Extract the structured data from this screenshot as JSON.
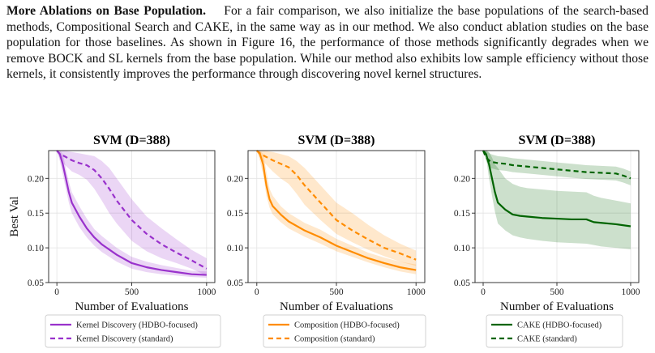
{
  "paragraph": {
    "heading": "More Ablations on Base Population.",
    "body": "For a fair comparison, we also initialize the base populations of the search-based methods, Compositional Search and CAKE, in the same way as in our method. We also conduct ablation studies on the base population for those baselines. As shown in Figure 16, the performance of those methods significantly degrades when we remove BOCK and SL kernels from the base population. While our method also exhibits low sample efficiency without those kernels, it consistently improves the performance through discovering novel kernel structures."
  },
  "chart_data": [
    {
      "type": "line",
      "title": "SVM (D=388)",
      "xlabel": "Number of Evaluations",
      "ylabel": "Best Val",
      "xlim": [
        0,
        1000
      ],
      "ylim": [
        0.05,
        0.24
      ],
      "xticks": [
        0,
        500,
        1000
      ],
      "yticks": [
        0.05,
        0.1,
        0.15,
        0.2
      ],
      "grid": true,
      "legend_position": "below",
      "series": [
        {
          "name": "Kernel Discovery (HDBO-focused)",
          "style": "solid",
          "color": "#9932CC",
          "x": [
            0,
            20,
            40,
            60,
            80,
            100,
            150,
            200,
            250,
            300,
            400,
            500,
            600,
            700,
            800,
            900,
            1000
          ],
          "y": [
            0.24,
            0.235,
            0.22,
            0.2,
            0.18,
            0.165,
            0.145,
            0.128,
            0.115,
            0.105,
            0.09,
            0.078,
            0.072,
            0.068,
            0.065,
            0.062,
            0.061
          ],
          "band": [
            [
              0.24,
              0.24
            ],
            [
              0.225,
              0.24
            ],
            [
              0.205,
              0.235
            ],
            [
              0.185,
              0.215
            ],
            [
              0.165,
              0.195
            ],
            [
              0.15,
              0.18
            ],
            [
              0.13,
              0.16
            ],
            [
              0.115,
              0.142
            ],
            [
              0.103,
              0.127
            ],
            [
              0.094,
              0.117
            ],
            [
              0.08,
              0.1
            ],
            [
              0.07,
              0.087
            ],
            [
              0.065,
              0.08
            ],
            [
              0.062,
              0.075
            ],
            [
              0.06,
              0.071
            ],
            [
              0.058,
              0.067
            ],
            [
              0.057,
              0.066
            ]
          ]
        },
        {
          "name": "Kernel Discovery (standard)",
          "style": "dashed",
          "color": "#9932CC",
          "x": [
            0,
            20,
            50,
            100,
            150,
            200,
            250,
            300,
            350,
            400,
            500,
            600,
            700,
            800,
            900,
            1000
          ],
          "y": [
            0.24,
            0.235,
            0.232,
            0.226,
            0.222,
            0.219,
            0.212,
            0.2,
            0.185,
            0.168,
            0.14,
            0.12,
            0.105,
            0.093,
            0.082,
            0.07
          ],
          "band": [
            [
              0.24,
              0.24
            ],
            [
              0.228,
              0.24
            ],
            [
              0.22,
              0.24
            ],
            [
              0.21,
              0.238
            ],
            [
              0.205,
              0.236
            ],
            [
              0.198,
              0.234
            ],
            [
              0.185,
              0.232
            ],
            [
              0.168,
              0.225
            ],
            [
              0.15,
              0.215
            ],
            [
              0.135,
              0.2
            ],
            [
              0.11,
              0.17
            ],
            [
              0.095,
              0.145
            ],
            [
              0.085,
              0.128
            ],
            [
              0.078,
              0.112
            ],
            [
              0.07,
              0.097
            ],
            [
              0.06,
              0.085
            ]
          ]
        }
      ]
    },
    {
      "type": "line",
      "title": "SVM (D=388)",
      "xlabel": "Number of Evaluations",
      "ylabel": "",
      "xlim": [
        0,
        1000
      ],
      "ylim": [
        0.05,
        0.24
      ],
      "xticks": [
        0,
        500,
        1000
      ],
      "yticks": [
        0.05,
        0.1,
        0.15,
        0.2
      ],
      "grid": true,
      "legend_position": "below",
      "series": [
        {
          "name": "Composition (HDBO-focused)",
          "style": "solid",
          "color": "#FF8C00",
          "x": [
            0,
            20,
            40,
            60,
            80,
            100,
            150,
            200,
            300,
            400,
            500,
            600,
            700,
            800,
            900,
            1000
          ],
          "y": [
            0.24,
            0.235,
            0.22,
            0.19,
            0.17,
            0.16,
            0.148,
            0.138,
            0.125,
            0.115,
            0.103,
            0.094,
            0.085,
            0.078,
            0.072,
            0.068
          ],
          "band": [
            [
              0.24,
              0.24
            ],
            [
              0.225,
              0.24
            ],
            [
              0.205,
              0.235
            ],
            [
              0.175,
              0.21
            ],
            [
              0.158,
              0.185
            ],
            [
              0.148,
              0.175
            ],
            [
              0.137,
              0.16
            ],
            [
              0.128,
              0.15
            ],
            [
              0.116,
              0.136
            ],
            [
              0.106,
              0.126
            ],
            [
              0.095,
              0.113
            ],
            [
              0.087,
              0.103
            ],
            [
              0.079,
              0.093
            ],
            [
              0.072,
              0.086
            ],
            [
              0.066,
              0.08
            ],
            [
              0.062,
              0.076
            ]
          ]
        },
        {
          "name": "Composition (standard)",
          "style": "dashed",
          "color": "#FF8C00",
          "x": [
            0,
            20,
            50,
            100,
            150,
            200,
            250,
            300,
            400,
            500,
            600,
            700,
            800,
            900,
            1000
          ],
          "y": [
            0.24,
            0.236,
            0.232,
            0.226,
            0.221,
            0.216,
            0.205,
            0.19,
            0.165,
            0.14,
            0.125,
            0.112,
            0.1,
            0.092,
            0.083
          ],
          "band": [
            [
              0.24,
              0.24
            ],
            [
              0.23,
              0.24
            ],
            [
              0.222,
              0.24
            ],
            [
              0.21,
              0.238
            ],
            [
              0.2,
              0.235
            ],
            [
              0.192,
              0.232
            ],
            [
              0.178,
              0.225
            ],
            [
              0.162,
              0.215
            ],
            [
              0.14,
              0.19
            ],
            [
              0.12,
              0.165
            ],
            [
              0.108,
              0.15
            ],
            [
              0.097,
              0.133
            ],
            [
              0.088,
              0.118
            ],
            [
              0.08,
              0.106
            ],
            [
              0.074,
              0.096
            ]
          ]
        }
      ]
    },
    {
      "type": "line",
      "title": "SVM (D=388)",
      "xlabel": "Number of Evaluations",
      "ylabel": "",
      "xlim": [
        0,
        1000
      ],
      "ylim": [
        0.05,
        0.24
      ],
      "xticks": [
        0,
        500,
        1000
      ],
      "yticks": [
        0.05,
        0.1,
        0.15,
        0.2
      ],
      "grid": true,
      "legend_position": "below",
      "series": [
        {
          "name": "CAKE (HDBO-focused)",
          "style": "solid",
          "color": "#006400",
          "x": [
            0,
            20,
            40,
            60,
            80,
            100,
            150,
            200,
            250,
            300,
            400,
            500,
            600,
            700,
            750,
            800,
            900,
            1000
          ],
          "y": [
            0.24,
            0.235,
            0.22,
            0.2,
            0.18,
            0.165,
            0.155,
            0.148,
            0.146,
            0.145,
            0.143,
            0.142,
            0.141,
            0.141,
            0.137,
            0.136,
            0.134,
            0.131
          ],
          "band": [
            [
              0.24,
              0.24
            ],
            [
              0.23,
              0.24
            ],
            [
              0.2,
              0.238
            ],
            [
              0.175,
              0.23
            ],
            [
              0.152,
              0.22
            ],
            [
              0.135,
              0.215
            ],
            [
              0.125,
              0.2
            ],
            [
              0.118,
              0.192
            ],
            [
              0.115,
              0.188
            ],
            [
              0.113,
              0.186
            ],
            [
              0.11,
              0.184
            ],
            [
              0.108,
              0.182
            ],
            [
              0.107,
              0.181
            ],
            [
              0.106,
              0.18
            ],
            [
              0.104,
              0.175
            ],
            [
              0.102,
              0.172
            ],
            [
              0.1,
              0.168
            ],
            [
              0.098,
              0.164
            ]
          ]
        },
        {
          "name": "CAKE (standard)",
          "style": "dashed",
          "color": "#006400",
          "x": [
            0,
            20,
            50,
            100,
            150,
            200,
            300,
            400,
            500,
            600,
            700,
            800,
            900,
            950,
            1000
          ],
          "y": [
            0.24,
            0.23,
            0.224,
            0.222,
            0.221,
            0.219,
            0.217,
            0.215,
            0.213,
            0.211,
            0.209,
            0.208,
            0.207,
            0.204,
            0.2
          ],
          "band": [
            [
              0.24,
              0.24
            ],
            [
              0.225,
              0.24
            ],
            [
              0.215,
              0.235
            ],
            [
              0.212,
              0.232
            ],
            [
              0.211,
              0.231
            ],
            [
              0.209,
              0.229
            ],
            [
              0.207,
              0.227
            ],
            [
              0.205,
              0.225
            ],
            [
              0.203,
              0.223
            ],
            [
              0.201,
              0.221
            ],
            [
              0.199,
              0.219
            ],
            [
              0.198,
              0.218
            ],
            [
              0.197,
              0.217
            ],
            [
              0.194,
              0.214
            ],
            [
              0.19,
              0.21
            ]
          ]
        }
      ]
    }
  ]
}
